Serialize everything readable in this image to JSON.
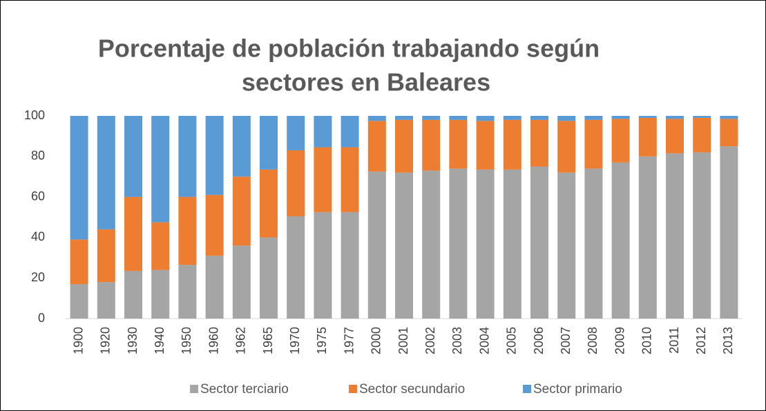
{
  "chart_data": {
    "type": "stacked_bar",
    "title": [
      "Porcentaje de población trabajando según",
      "sectores en Baleares"
    ],
    "categories": [
      "1900",
      "1920",
      "1930",
      "1940",
      "1950",
      "1960",
      "1962",
      "1965",
      "1970",
      "1975",
      "1977",
      "2000",
      "2001",
      "2002",
      "2003",
      "2004",
      "2005",
      "2006",
      "2007",
      "2008",
      "2009",
      "2010",
      "2011",
      "2012",
      "2013"
    ],
    "series": [
      {
        "name": "Sector terciario",
        "color": "#a5a5a5",
        "values": [
          17,
          18,
          23.5,
          24,
          26.5,
          31,
          36,
          40,
          50.5,
          52.5,
          52.5,
          72.5,
          72,
          73,
          74,
          73.5,
          73.5,
          75,
          72,
          74,
          77,
          80,
          81.5,
          82,
          85
        ]
      },
      {
        "name": "Sector secundario",
        "color": "#ed7d31",
        "values": [
          22,
          26,
          36.5,
          23.5,
          33.5,
          30,
          34,
          33.5,
          32.5,
          32,
          32,
          25,
          26,
          25,
          24,
          24,
          24.5,
          23,
          25.5,
          24,
          21.5,
          19,
          17,
          17,
          13.5
        ]
      },
      {
        "name": "Sector primario",
        "color": "#5b9bd5",
        "values": [
          61,
          56,
          40,
          52.5,
          40,
          39,
          30,
          26.5,
          17,
          15.5,
          15.5,
          2.5,
          2,
          2,
          2,
          2.5,
          2,
          2,
          2.5,
          2,
          1.5,
          1,
          1.5,
          1,
          1.5
        ]
      }
    ],
    "ylim": [
      0,
      100
    ],
    "yticks": [
      0,
      20,
      40,
      60,
      80,
      100
    ],
    "grid": false,
    "legend": "bottom"
  }
}
